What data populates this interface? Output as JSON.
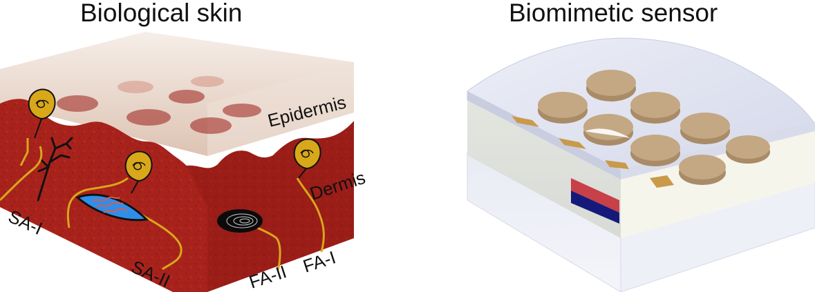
{
  "left_panel": {
    "title": "Biological skin",
    "layers": {
      "epidermis": "Epidermis",
      "dermis": "Dermis"
    },
    "receptors": {
      "sa1": "SA-I",
      "sa2": "SA-II",
      "fa2": "FA-II",
      "fa1": "FA-I"
    }
  },
  "right_panel": {
    "title": "Biomimetic sensor"
  },
  "colors": {
    "dermis": "#a8221c",
    "epidermis": "#e9d8cc",
    "receptor_gold": "#d8a81a",
    "merkel_blue": "#2f8fe8",
    "sensor_disc": "#c4a783",
    "sensor_top": "#dfe3f0",
    "flag_red": "#c84048",
    "flag_blue": "#151a7a"
  }
}
